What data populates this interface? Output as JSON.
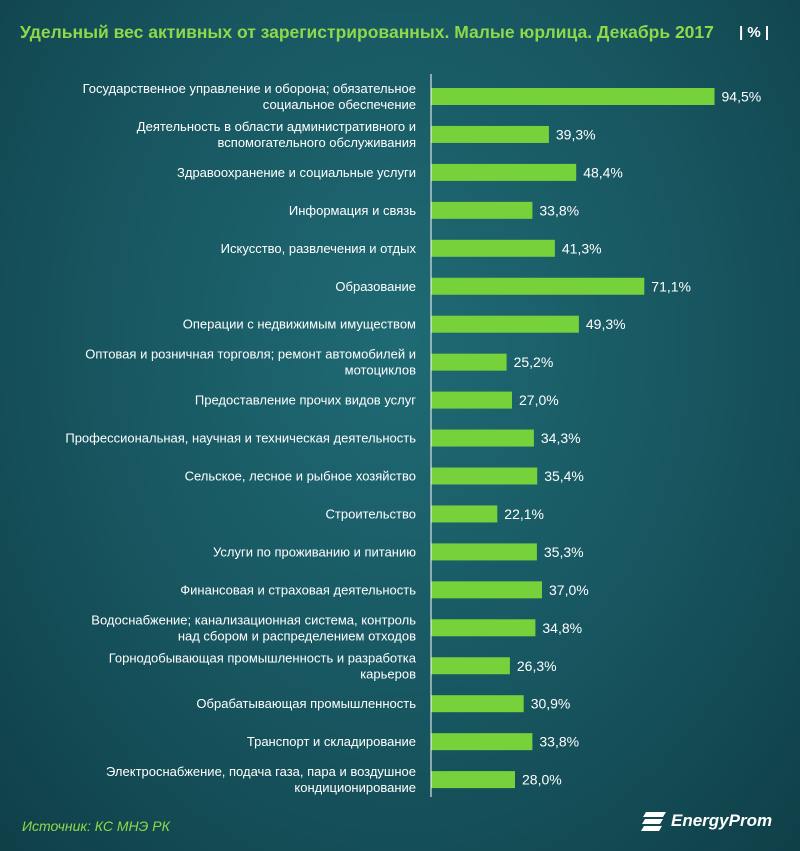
{
  "header": {
    "title": "Удельный вес активных от зарегистрированных. Малые юрлица.  Декабрь 2017",
    "unit": "| % |"
  },
  "footer": {
    "source": "Источник: КС МНЭ РК",
    "logo": "EnergyProm"
  },
  "colors": {
    "bar": "#76d13a",
    "title": "#8fd84a",
    "axis": "#ffffff"
  },
  "chart_data": {
    "type": "bar",
    "orientation": "horizontal",
    "xlim": [
      0,
      100
    ],
    "grid": false,
    "categories": [
      "Государственное управление и оборона; обязательное социальное обеспечение",
      "Деятельность в области административного и вспомогательного обслуживания",
      "Здравоохранение и социальные услуги",
      "Информация и связь",
      "Искусство, развлечения и отдых",
      "Образование",
      "Операции с недвижимым имуществом",
      "Оптовая и розничная торговля; ремонт автомобилей и мотоциклов",
      "Предоставление прочих видов услуг",
      "Профессиональная, научная и техническая деятельность",
      "Сельское, лесное и рыбное хозяйство",
      "Строительство",
      "Услуги по проживанию и питанию",
      "Финансовая и страховая деятельность",
      "Водоснабжение; канализационная система, контроль над сбором и распределением отходов",
      "Горнодобывающая промышленность и разработка карьеров",
      "Обрабатывающая промышленность",
      "Транспорт и складирование",
      "Электроснабжение, подача газа, пара и воздушное кондиционирование"
    ],
    "category_lines": [
      [
        "Государственное управление и оборона; обязательное",
        "социальное обеспечение"
      ],
      [
        "Деятельность в области административного и",
        "вспомогательного обслуживания"
      ],
      [
        "Здравоохранение и социальные услуги"
      ],
      [
        "Информация и связь"
      ],
      [
        "Искусство, развлечения и отдых"
      ],
      [
        "Образование"
      ],
      [
        "Операции с недвижимым имуществом"
      ],
      [
        "Оптовая и розничная торговля; ремонт автомобилей и",
        "мотоциклов"
      ],
      [
        "Предоставление прочих видов услуг"
      ],
      [
        "Профессиональная, научная и техническая деятельность"
      ],
      [
        "Сельское, лесное и рыбное хозяйство"
      ],
      [
        "Строительство"
      ],
      [
        "Услуги по проживанию и питанию"
      ],
      [
        "Финансовая и страховая деятельность"
      ],
      [
        "Водоснабжение; канализационная система, контроль",
        "над сбором и распределением отходов"
      ],
      [
        "Горнодобывающая промышленность и разработка",
        "карьеров"
      ],
      [
        "Обрабатывающая промышленность"
      ],
      [
        "Транспорт и складирование"
      ],
      [
        "Электроснабжение, подача газа, пара и воздушное",
        "кондиционирование"
      ]
    ],
    "values": [
      94.5,
      39.3,
      48.4,
      33.8,
      41.3,
      71.1,
      49.3,
      25.2,
      27.0,
      34.3,
      35.4,
      22.1,
      35.3,
      37.0,
      34.8,
      26.3,
      30.9,
      33.8,
      28.0
    ],
    "value_labels": [
      "94,5%",
      "39,3%",
      "48,4%",
      "33,8%",
      "41,3%",
      "71,1%",
      "49,3%",
      "25,2%",
      "27,0%",
      "34,3%",
      "35,4%",
      "22,1%",
      "35,3%",
      "37,0%",
      "34,8%",
      "26,3%",
      "30,9%",
      "33,8%",
      "28,0%"
    ]
  }
}
